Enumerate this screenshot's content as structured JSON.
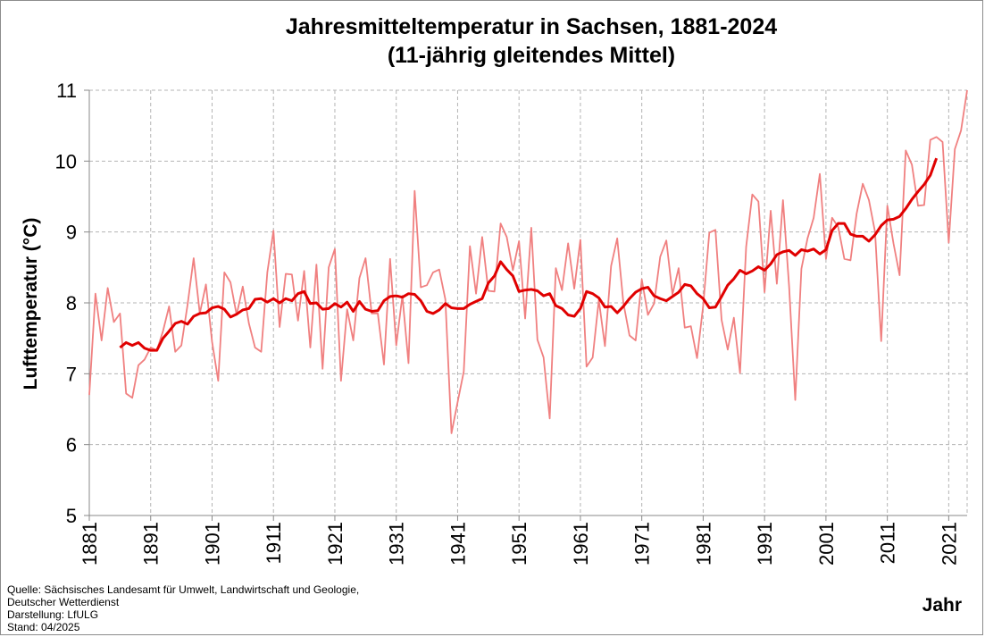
{
  "chart_data": {
    "type": "line",
    "title": "Jahresmitteltemperatur in Sachsen, 1881-2024",
    "subtitle": "(11-jährig gleitendes Mittel)",
    "ylabel": "Lufttemperatur (°C)",
    "xlabel": "Jahr",
    "xlim": [
      1881,
      2024
    ],
    "ylim": [
      5,
      11
    ],
    "yticks": [
      5,
      6,
      7,
      8,
      9,
      10,
      11
    ],
    "xticks": [
      1881,
      1891,
      1901,
      1911,
      1921,
      1931,
      1941,
      1951,
      1961,
      1971,
      1981,
      1991,
      2001,
      2011,
      2021
    ],
    "grid": true,
    "series": [
      {
        "key": "annual",
        "color": "#f08080",
        "x_start": 1881,
        "values": [
          6.7,
          8.13,
          7.47,
          8.21,
          7.73,
          7.85,
          6.72,
          6.66,
          7.12,
          7.2,
          7.37,
          7.33,
          7.6,
          7.95,
          7.31,
          7.4,
          7.97,
          8.63,
          7.85,
          8.26,
          7.45,
          6.9,
          8.43,
          8.29,
          7.83,
          8.23,
          7.71,
          7.37,
          7.31,
          8.43,
          9.02,
          7.66,
          8.41,
          8.4,
          7.75,
          8.45,
          7.37,
          8.54,
          7.07,
          8.5,
          8.76,
          6.9,
          7.91,
          7.47,
          8.35,
          8.63,
          7.85,
          7.85,
          7.13,
          8.62,
          7.4,
          8.1,
          7.15,
          9.58,
          8.22,
          8.25,
          8.43,
          8.47,
          8.05,
          6.16,
          6.6,
          7.03,
          8.8,
          8.13,
          8.93,
          8.17,
          8.16,
          9.12,
          8.93,
          8.46,
          8.87,
          7.78,
          9.06,
          7.48,
          7.23,
          6.37,
          8.49,
          8.18,
          8.84,
          8.2,
          8.89,
          7.1,
          7.23,
          8.04,
          7.39,
          8.52,
          8.91,
          8.0,
          7.54,
          7.47,
          8.33,
          7.83,
          7.99,
          8.65,
          8.88,
          8.12,
          8.49,
          7.65,
          7.67,
          7.22,
          7.96,
          8.99,
          9.03,
          7.76,
          7.34,
          7.79,
          7.01,
          8.79,
          9.53,
          9.43,
          8.15,
          9.3,
          8.27,
          9.45,
          8.23,
          6.63,
          8.48,
          8.91,
          9.2,
          9.82,
          8.62,
          9.2,
          9.07,
          8.62,
          8.6,
          9.26,
          9.68,
          9.45,
          9.0,
          7.46,
          9.37,
          8.84,
          8.39,
          10.15,
          9.95,
          9.37,
          9.38,
          10.3,
          10.34,
          10.27,
          8.85,
          10.17,
          10.43,
          11.0
        ]
      },
      {
        "key": "moving-average",
        "color": "#e00000",
        "x_start": 1886,
        "values": [
          7.37,
          7.44,
          7.4,
          7.44,
          7.36,
          7.33,
          7.33,
          7.5,
          7.6,
          7.71,
          7.74,
          7.7,
          7.81,
          7.85,
          7.86,
          7.93,
          7.95,
          7.91,
          7.8,
          7.84,
          7.9,
          7.92,
          8.05,
          8.06,
          8.01,
          8.06,
          8.0,
          8.06,
          8.03,
          8.13,
          8.16,
          7.99,
          8.0,
          7.91,
          7.92,
          7.99,
          7.94,
          8.01,
          7.88,
          8.02,
          7.91,
          7.88,
          7.89,
          8.03,
          8.09,
          8.1,
          8.08,
          8.13,
          8.12,
          8.03,
          7.88,
          7.85,
          7.9,
          7.99,
          7.93,
          7.92,
          7.92,
          7.98,
          8.02,
          8.06,
          8.28,
          8.38,
          8.58,
          8.47,
          8.38,
          8.16,
          8.18,
          8.19,
          8.17,
          8.1,
          8.13,
          7.96,
          7.92,
          7.83,
          7.81,
          7.92,
          8.16,
          8.13,
          8.07,
          7.94,
          7.95,
          7.86,
          7.95,
          8.06,
          8.15,
          8.2,
          8.22,
          8.1,
          8.06,
          8.03,
          8.09,
          8.15,
          8.26,
          8.24,
          8.13,
          8.06,
          7.93,
          7.94,
          8.09,
          8.25,
          8.34,
          8.46,
          8.41,
          8.45,
          8.51,
          8.46,
          8.55,
          8.68,
          8.72,
          8.74,
          8.67,
          8.75,
          8.73,
          8.76,
          8.69,
          8.75,
          9.02,
          9.12,
          9.12,
          8.97,
          8.94,
          8.94,
          8.87,
          8.96,
          9.09,
          9.17,
          9.18,
          9.22,
          9.33,
          9.46,
          9.57,
          9.67,
          9.8,
          10.04
        ]
      }
    ]
  },
  "source": {
    "line1": "Quelle: Sächsisches Landesamt für Umwelt, Landwirtschaft und Geologie,",
    "line2": "Deutscher Wetterdienst",
    "line3": "Darstellung: LfULG",
    "line4": "Stand: 04/2025"
  }
}
